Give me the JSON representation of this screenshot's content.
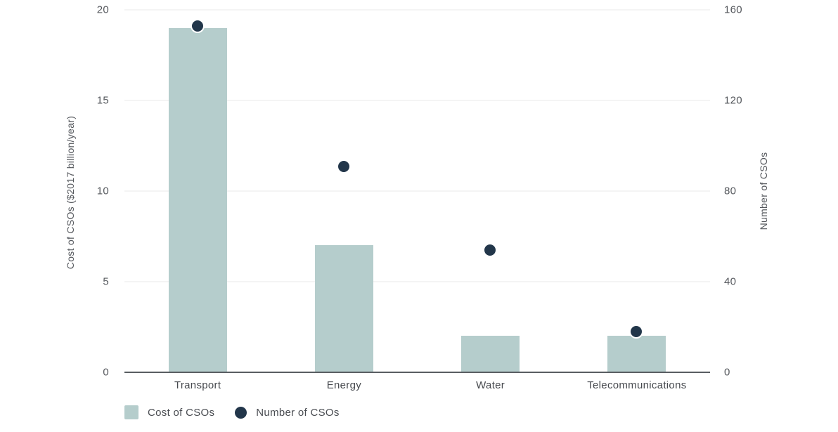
{
  "chart_data": {
    "type": "bar",
    "subtype": "dual-axis bar with scatter overlay",
    "categories": [
      "Transport",
      "Energy",
      "Water",
      "Telecommunications"
    ],
    "series": [
      {
        "name": "Cost of CSOs",
        "type": "bar",
        "axis": "left",
        "values": [
          19,
          7,
          2,
          2
        ]
      },
      {
        "name": "Number of CSOs",
        "type": "scatter",
        "axis": "right",
        "values": [
          153,
          91,
          54,
          18
        ]
      }
    ],
    "title": "",
    "xlabel": "",
    "ylabel_left": "Cost of CSOs ($2017 billion/year)",
    "ylabel_right": "Number of CSOs",
    "ylim_left": [
      0,
      20
    ],
    "ylim_right": [
      0,
      160
    ],
    "yticks_left": [
      0,
      5,
      10,
      15,
      20
    ],
    "yticks_right": [
      0,
      40,
      80,
      120,
      160
    ],
    "grid": true,
    "legend_position": "bottom"
  },
  "style": {
    "background": "#ffffff",
    "bar_color": "#b5cdcc",
    "dot_color": "#22364a",
    "grid_color": "#e9eaea",
    "axis_line_color": "#595d62",
    "tick_text_color": "#55585d",
    "category_text_color": "#46494e",
    "legend_text_color": "#4a4d52"
  }
}
